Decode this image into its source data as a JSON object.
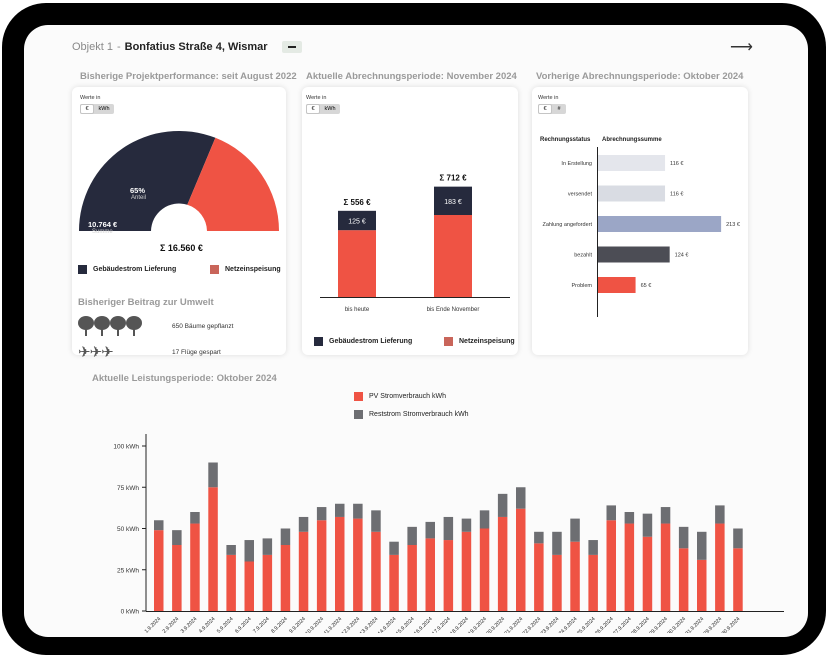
{
  "header": {
    "object_label": "Objekt 1",
    "separator": "-",
    "object_name": "Bonfatius Straße 4, Wismar"
  },
  "colors": {
    "navy": "#262a3d",
    "red": "#ef5344",
    "gray": "#6d6e72",
    "lightgray": "#d9dce3",
    "blue": "#9ba6c6",
    "darkgray": "#4c4d55"
  },
  "card1": {
    "title": "Bisherige Projektperformance: seit August 2022",
    "toggle_label": "Werte in",
    "toggle_a": "€",
    "toggle_b": "kWh",
    "pct_value": "65%",
    "pct_label": "Anteil",
    "sum_value": "10.764 €",
    "sum_label": "Summe",
    "total": "Σ 16.560 €",
    "legend_a": "Gebäudestrom Lieferung",
    "legend_b": "Netzeinspeisung",
    "env_title": "Bisheriger Beitrag zur Umwelt",
    "trees_text": "650 Bäume gepflanzt",
    "flights_text": "17 Flüge gespart"
  },
  "card2": {
    "title": "Aktuelle Abrechnungsperiode: November 2024",
    "toggle_label": "Werte in",
    "toggle_a": "€",
    "toggle_b": "kWh",
    "legend_a": "Gebäudestrom Lieferung",
    "legend_b": "Netzeinspeisung",
    "chart_data": {
      "type": "bar",
      "stacked": true,
      "categories": [
        "bis heute",
        "bis Ende November"
      ],
      "series": [
        {
          "name": "Netzeinspeisung",
          "values": [
            431,
            529
          ]
        },
        {
          "name": "Gebäudestrom Lieferung",
          "values": [
            125,
            183
          ]
        }
      ],
      "labels": [
        "125 €",
        "183 €"
      ],
      "totals": [
        "Σ 556 €",
        "Σ 712 €"
      ],
      "total_values": [
        556,
        712
      ]
    }
  },
  "card3": {
    "title": "Vorherige Abrechnungsperiode: Oktober 2024",
    "toggle_label": "Werte in",
    "toggle_a": "€",
    "toggle_b": "#",
    "col_status": "Rechnungsstatus",
    "col_sum": "Abrechnungssumme",
    "chart_data": {
      "type": "bar",
      "orientation": "horizontal",
      "categories": [
        "In Erstellung",
        "versendet",
        "Zahlung angefordert",
        "bezahlt",
        "Problem"
      ],
      "values": [
        116,
        116,
        213,
        124,
        65
      ],
      "labels": [
        "116 €",
        "116 €",
        "213 €",
        "124 €",
        "65 €"
      ],
      "colors": [
        "#e4e6ec",
        "#d9dce3",
        "#9ba6c6",
        "#4c4d55",
        "#ef5344"
      ]
    }
  },
  "section4": {
    "title": "Aktuelle Leistungsperiode: Oktober 2024",
    "legend_a": "PV Stromverbrauch kWh",
    "legend_b": "Reststrom Stromverbrauch kWh"
  },
  "chart_data": {
    "type": "bar",
    "stacked": true,
    "title": "Aktuelle Leistungsperiode: Oktober 2024",
    "ylim": [
      0,
      100
    ],
    "yticks": [
      0,
      25,
      50,
      75,
      100
    ],
    "ytick_labels": [
      "0 kWh",
      "25 kWh",
      "50 kWh",
      "75 kWh",
      "100 kWh"
    ],
    "categories": [
      "1.9.2024",
      "2.9.2024",
      "3.9.2024",
      "4.9.2024",
      "5.9.2024",
      "6.9.2024",
      "7.9.2024",
      "8.9.2024",
      "9.9.2024",
      "10.9.2024",
      "11.9.2024",
      "12.9.2024",
      "13.9.2024",
      "14.9.2024",
      "15.9.2024",
      "16.9.2024",
      "17.9.2024",
      "18.9.2024",
      "19.9.2024",
      "20.9.2024",
      "21.9.2024",
      "22.9.2024",
      "23.9.2024",
      "24.9.2024",
      "25.9.2024",
      "26.9.2024",
      "27.9.2024",
      "28.9.2024",
      "29.9.2024",
      "30.9.2024",
      "31.9.2024",
      "29.9.2024",
      "30.9.2024"
    ],
    "series": [
      {
        "name": "PV Stromverbrauch kWh",
        "values": [
          49,
          40,
          53,
          75,
          34,
          30,
          34,
          40,
          48,
          55,
          57,
          56,
          48,
          34,
          40,
          44,
          43,
          48,
          50,
          57,
          62,
          41,
          34,
          42,
          34,
          55,
          53,
          45,
          53,
          38,
          31,
          53,
          38
        ]
      },
      {
        "name": "Reststrom Stromverbrauch kWh",
        "values": [
          6,
          9,
          7,
          15,
          6,
          13,
          10,
          10,
          9,
          8,
          8,
          9,
          13,
          8,
          11,
          10,
          14,
          8,
          11,
          14,
          13,
          7,
          14,
          14,
          9,
          9,
          7,
          14,
          10,
          13,
          17,
          11,
          12
        ]
      }
    ]
  }
}
